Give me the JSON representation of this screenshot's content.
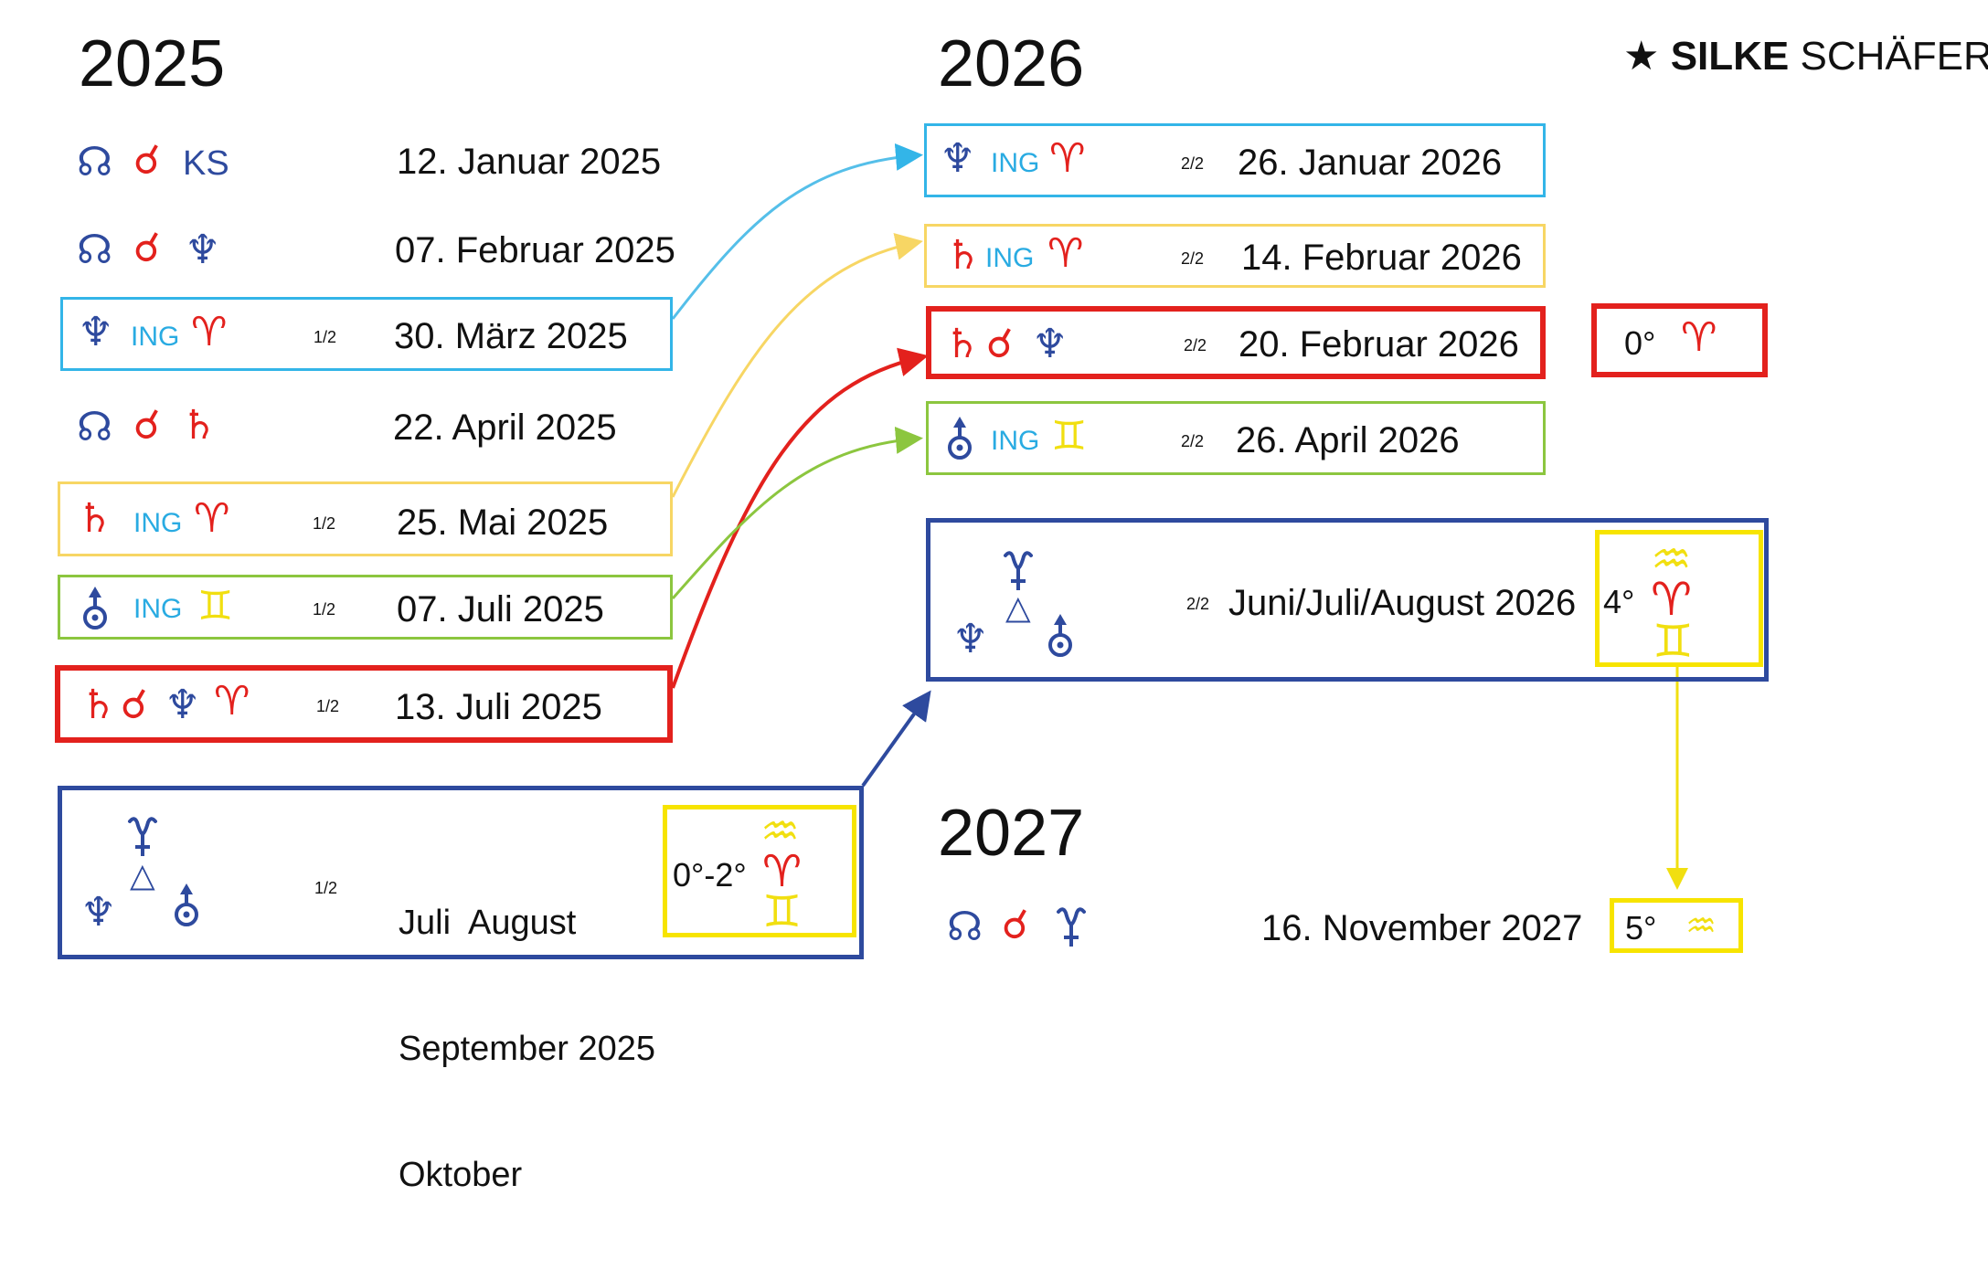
{
  "brand": {
    "icon": "star",
    "name_bold": "SILKE",
    "name_rest": "SCHÄFER"
  },
  "colors": {
    "blue": "#2e4a9e",
    "light_blue": "#29abe2",
    "red": "#e3211d",
    "yellow": "#f1df10",
    "green": "#8cc63f"
  },
  "years": {
    "y2025": "2025",
    "y2026": "2026",
    "y2027": "2027"
  },
  "col2025": [
    {
      "symbols": [
        "north-node",
        "conjunction"
      ],
      "extra": "KS",
      "date": "12. Januar 2025"
    },
    {
      "symbols": [
        "north-node",
        "conjunction",
        "neptune"
      ],
      "date": "07. Februar 2025"
    },
    {
      "symbols": [
        "neptune",
        "aries"
      ],
      "ing": "ING",
      "fraction": "1/2",
      "date": "30. März 2025",
      "border": "light-blue"
    },
    {
      "symbols": [
        "north-node",
        "conjunction",
        "saturn"
      ],
      "date": "22. April 2025"
    },
    {
      "symbols": [
        "saturn",
        "aries"
      ],
      "ing": "ING",
      "fraction": "1/2",
      "date": "25. Mai 2025",
      "border": "yellow"
    },
    {
      "symbols": [
        "uranus",
        "gemini"
      ],
      "ing": "ING",
      "fraction": "1/2",
      "date": "07. Juli 2025",
      "border": "green"
    },
    {
      "symbols": [
        "saturn",
        "conjunction",
        "neptune",
        "aries"
      ],
      "fraction": "1/2",
      "date": "13. Juli 2025",
      "border": "red"
    },
    {
      "symbols": [
        "pluto",
        "trine",
        "neptune",
        "uranus"
      ],
      "fraction": "1/2",
      "date_lines": [
        "Juli  August",
        "September 2025",
        "Oktober"
      ],
      "degree": "0°-2°",
      "degree_signs": [
        "aquarius",
        "aries",
        "gemini"
      ],
      "border": "blue"
    }
  ],
  "col2026": [
    {
      "symbols": [
        "neptune",
        "aries"
      ],
      "ing": "ING",
      "fraction": "2/2",
      "date": "26. Januar 2026",
      "border": "light-blue"
    },
    {
      "symbols": [
        "saturn",
        "aries"
      ],
      "ing": "ING",
      "fraction": "2/2",
      "date": "14. Februar 2026",
      "border": "yellow"
    },
    {
      "symbols": [
        "saturn",
        "conjunction",
        "neptune"
      ],
      "fraction": "2/2",
      "date": "20. Februar 2026",
      "border": "red",
      "degree": "0°",
      "degree_signs": [
        "aries"
      ]
    },
    {
      "symbols": [
        "uranus",
        "gemini"
      ],
      "ing": "ING",
      "fraction": "2/2",
      "date": "26. April 2026",
      "border": "green"
    },
    {
      "symbols": [
        "pluto",
        "trine",
        "neptune",
        "uranus"
      ],
      "fraction": "2/2",
      "date": "Juni/Juli/August 2026",
      "degree": "4°",
      "degree_signs": [
        "aquarius",
        "aries",
        "gemini"
      ],
      "border": "blue"
    }
  ],
  "col2027": [
    {
      "symbols": [
        "north-node",
        "conjunction",
        "pluto"
      ],
      "date": "16. November 2027",
      "degree": "5°",
      "degree_signs": [
        "aquarius"
      ],
      "border": "yellow"
    }
  ]
}
